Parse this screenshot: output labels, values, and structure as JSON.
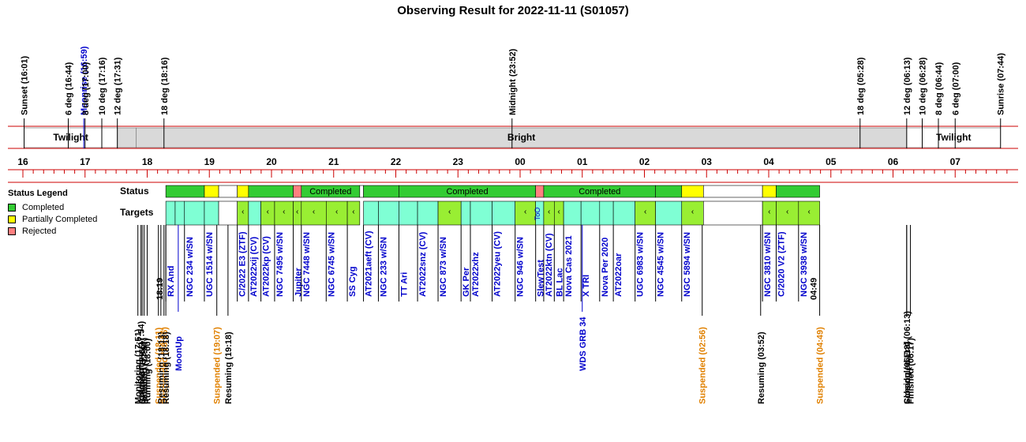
{
  "title": "Observing Result for 2022-11-11 (S01057)",
  "colors": {
    "completed": "#33cc33",
    "partial": "#ffff00",
    "rejected": "#ff8080",
    "target_done": "#7fffd4",
    "target_partial": "#99ee33",
    "twilight": "#ffffff",
    "bright": "#d9d9d9",
    "axis": "#cc0000",
    "ref_blue": "#0000cc",
    "suspended": "#e08000"
  },
  "legend": {
    "title": "Status Legend",
    "items": [
      {
        "label": "Completed",
        "color": "#33cc33"
      },
      {
        "label": "Partially Completed",
        "color": "#ffff00"
      },
      {
        "label": "Rejected",
        "color": "#ff8080"
      }
    ]
  },
  "row_labels": {
    "status": "Status",
    "targets": "Targets"
  },
  "sky_events": [
    {
      "t": 16.02,
      "label": "Sunset (16:01)"
    },
    {
      "t": 16.73,
      "label": "6 deg (16:44)"
    },
    {
      "t": 16.98,
      "label": "Moonrise (16:59)",
      "color": "ref_blue"
    },
    {
      "t": 17.0,
      "label": "8 deg (17:00)"
    },
    {
      "t": 17.27,
      "label": "10 deg (17:16)"
    },
    {
      "t": 17.52,
      "label": "12 deg (17:31)"
    },
    {
      "t": 18.27,
      "label": "18 deg (18:16)"
    },
    {
      "t": 23.87,
      "label": "Midnight (23:52)"
    },
    {
      "t": 29.47,
      "label": "18 deg (05:28)"
    },
    {
      "t": 30.22,
      "label": "12 deg (06:13)"
    },
    {
      "t": 30.47,
      "label": "10 deg (06:28)"
    },
    {
      "t": 30.73,
      "label": "8 deg (06:44)"
    },
    {
      "t": 31.0,
      "label": "6 deg (07:00)"
    },
    {
      "t": 31.73,
      "label": "Sunrise (07:44)"
    }
  ],
  "sky_bands": [
    {
      "t0": 16.02,
      "t1": 17.52,
      "label": "Twilight",
      "color": "twilight"
    },
    {
      "t0": 17.52,
      "t1": 17.82,
      "label": "",
      "color": "bright"
    },
    {
      "t0": 17.82,
      "t1": 30.22,
      "label": "Bright",
      "color": "bright"
    },
    {
      "t0": 30.22,
      "t1": 31.73,
      "label": "Twilight",
      "color": "twilight"
    }
  ],
  "hour_labels": [
    "16",
    "17",
    "18",
    "19",
    "20",
    "21",
    "22",
    "23",
    "00",
    "01",
    "02",
    "03",
    "04",
    "05",
    "06",
    "07"
  ],
  "status_blocks": [
    {
      "t0": 18.3,
      "t1": 18.92,
      "kind": "completed",
      "label": ""
    },
    {
      "t0": 18.92,
      "t1": 19.15,
      "kind": "partial",
      "label": ""
    },
    {
      "t0": 19.15,
      "t1": 19.45,
      "kind": "blank",
      "label": ""
    },
    {
      "t0": 19.45,
      "t1": 19.63,
      "kind": "partial",
      "label": ""
    },
    {
      "t0": 19.63,
      "t1": 20.35,
      "kind": "completed",
      "label": ""
    },
    {
      "t0": 20.35,
      "t1": 20.48,
      "kind": "rejected",
      "label": ""
    },
    {
      "t0": 20.48,
      "t1": 21.42,
      "kind": "completed",
      "label": "Completed"
    },
    {
      "t0": 21.42,
      "t1": 21.48,
      "kind": "blank",
      "label": ""
    },
    {
      "t0": 21.48,
      "t1": 22.05,
      "kind": "completed",
      "label": ""
    },
    {
      "t0": 22.05,
      "t1": 24.25,
      "kind": "completed",
      "label": "Completed"
    },
    {
      "t0": 24.25,
      "t1": 24.38,
      "kind": "rejected",
      "label": ""
    },
    {
      "t0": 24.38,
      "t1": 26.18,
      "kind": "completed",
      "label": "Completed"
    },
    {
      "t0": 26.18,
      "t1": 26.6,
      "kind": "completed",
      "label": ""
    },
    {
      "t0": 26.6,
      "t1": 26.95,
      "kind": "partial",
      "label": ""
    },
    {
      "t0": 26.95,
      "t1": 27.9,
      "kind": "blank",
      "label": ""
    },
    {
      "t0": 27.9,
      "t1": 28.12,
      "kind": "partial",
      "label": ""
    },
    {
      "t0": 28.12,
      "t1": 28.82,
      "kind": "completed",
      "label": ""
    }
  ],
  "targets": [
    {
      "t0": 18.3,
      "t1": 18.45,
      "kind": "target_done",
      "name": "RX And",
      "mark": ""
    },
    {
      "t0": 18.45,
      "t1": 18.6,
      "kind": "target_done",
      "name": "",
      "mark": ""
    },
    {
      "t0": 18.6,
      "t1": 18.92,
      "kind": "target_done",
      "name": "NGC 234 w/SN",
      "mark": ""
    },
    {
      "t0": 18.92,
      "t1": 19.15,
      "kind": "target_done",
      "name": "UGC 1514 w/SN",
      "mark": ""
    },
    {
      "t0": 19.15,
      "t1": 19.45,
      "kind": "blank",
      "name": "",
      "mark": ""
    },
    {
      "t0": 19.45,
      "t1": 19.63,
      "kind": "target_partial",
      "name": "C/2022 E3 (ZTF)",
      "mark": "‹"
    },
    {
      "t0": 19.63,
      "t1": 19.83,
      "kind": "target_done",
      "name": "AT2022xij (CV)",
      "mark": ""
    },
    {
      "t0": 19.83,
      "t1": 20.05,
      "kind": "target_partial",
      "name": "AT2022kp (CV)",
      "mark": "‹"
    },
    {
      "t0": 20.05,
      "t1": 20.35,
      "kind": "target_partial",
      "name": "NGC 7495 w/SN",
      "mark": "‹"
    },
    {
      "t0": 20.35,
      "t1": 20.48,
      "kind": "target_partial",
      "name": "Jupiter",
      "mark": "‹"
    },
    {
      "t0": 20.48,
      "t1": 20.88,
      "kind": "target_partial",
      "name": "NGC 7448 w/SN",
      "mark": "‹"
    },
    {
      "t0": 20.88,
      "t1": 21.22,
      "kind": "target_partial",
      "name": "NGC 6745 w/SN",
      "mark": "‹"
    },
    {
      "t0": 21.22,
      "t1": 21.42,
      "kind": "target_partial",
      "name": "SS Cyg",
      "mark": "‹"
    },
    {
      "t0": 21.48,
      "t1": 21.72,
      "kind": "target_done",
      "name": "AT2021aeft (CV)",
      "mark": ""
    },
    {
      "t0": 21.72,
      "t1": 22.05,
      "kind": "target_done",
      "name": "NGC 233 w/SN",
      "mark": ""
    },
    {
      "t0": 22.05,
      "t1": 22.35,
      "kind": "target_done",
      "name": "TT Ari",
      "mark": ""
    },
    {
      "t0": 22.35,
      "t1": 22.68,
      "kind": "target_done",
      "name": "AT2022snz (CV)",
      "mark": ""
    },
    {
      "t0": 22.68,
      "t1": 23.05,
      "kind": "target_partial",
      "name": "NGC 873 w/SN",
      "mark": "‹"
    },
    {
      "t0": 23.05,
      "t1": 23.2,
      "kind": "target_done",
      "name": "GK Per",
      "mark": ""
    },
    {
      "t0": 23.2,
      "t1": 23.55,
      "kind": "target_done",
      "name": "AT2022xhz",
      "mark": ""
    },
    {
      "t0": 23.55,
      "t1": 23.92,
      "kind": "target_done",
      "name": "AT2022yeu (CV)",
      "mark": ""
    },
    {
      "t0": 23.92,
      "t1": 24.25,
      "kind": "target_partial",
      "name": "NGC 946 w/SN",
      "mark": "‹"
    },
    {
      "t0": 24.25,
      "t1": 24.38,
      "kind": "target_done",
      "name": "SlewTest",
      "mark": "ToO"
    },
    {
      "t0": 24.38,
      "t1": 24.55,
      "kind": "target_partial",
      "name": "AT2022ktn (CV)",
      "mark": "‹"
    },
    {
      "t0": 24.55,
      "t1": 24.7,
      "kind": "target_partial",
      "name": "BL Lac",
      "mark": "‹"
    },
    {
      "t0": 24.7,
      "t1": 24.98,
      "kind": "target_done",
      "name": "Nova Cas 2021",
      "mark": ""
    },
    {
      "t0": 24.98,
      "t1": 25.28,
      "kind": "target_done",
      "name": "X TRI",
      "mark": ""
    },
    {
      "t0": 25.28,
      "t1": 25.5,
      "kind": "target_done",
      "name": "Nova Per 2020",
      "mark": ""
    },
    {
      "t0": 25.5,
      "t1": 25.85,
      "kind": "target_done",
      "name": "AT2022oar",
      "mark": ""
    },
    {
      "t0": 25.85,
      "t1": 26.18,
      "kind": "target_partial",
      "name": "UGC 6983 w/SN",
      "mark": "‹"
    },
    {
      "t0": 26.18,
      "t1": 26.6,
      "kind": "target_done",
      "name": "NGC 4545 w/SN",
      "mark": ""
    },
    {
      "t0": 26.6,
      "t1": 26.95,
      "kind": "target_partial",
      "name": "NGC 5894 w/SN",
      "mark": "‹"
    },
    {
      "t0": 26.95,
      "t1": 27.9,
      "kind": "blank",
      "name": "",
      "mark": ""
    },
    {
      "t0": 27.9,
      "t1": 28.12,
      "kind": "target_partial",
      "name": "NGC 3810 w/SN",
      "mark": "‹"
    },
    {
      "t0": 28.12,
      "t1": 28.48,
      "kind": "target_partial",
      "name": "C/2020 V2 (ZTF)",
      "mark": "‹"
    },
    {
      "t0": 28.48,
      "t1": 28.82,
      "kind": "target_partial",
      "name": "NGC 3938 w/SN",
      "mark": "‹"
    }
  ],
  "window_labels": [
    {
      "t": 18.3,
      "label": "18:19"
    },
    {
      "t": 28.82,
      "label": "04:49"
    }
  ],
  "extra_refs": [
    {
      "t": 18.5,
      "label": "MoonUp",
      "color": "ref_blue"
    },
    {
      "t": 25.0,
      "label": "WDS GRB 34",
      "color": "ref_blue"
    }
  ],
  "system_events": [
    {
      "t": 17.85,
      "label": "Monitoring (17:51)",
      "kind": "normal"
    },
    {
      "t": 17.9,
      "label": "AutoStarting (17:54)",
      "kind": "normal"
    },
    {
      "t": 17.92,
      "label": "Created (17:55)",
      "kind": "normal"
    },
    {
      "t": 17.95,
      "label": "Initiating (17:57)",
      "kind": "normal"
    },
    {
      "t": 18.0,
      "label": "Running (18:00)",
      "kind": "normal"
    },
    {
      "t": 18.18,
      "label": "Suspended (18:11)",
      "kind": "suspended"
    },
    {
      "t": 18.22,
      "label": "Resuming (18:13)",
      "kind": "normal"
    },
    {
      "t": 18.27,
      "label": "Suspended (18:16)",
      "kind": "suspended"
    },
    {
      "t": 18.3,
      "label": "Resuming (18:18)",
      "kind": "normal"
    },
    {
      "t": 19.12,
      "label": "Suspended (19:07)",
      "kind": "suspended"
    },
    {
      "t": 19.3,
      "label": "Resuming (19:18)",
      "kind": "normal"
    },
    {
      "t": 26.93,
      "label": "Suspended (02:56)",
      "kind": "suspended"
    },
    {
      "t": 27.87,
      "label": "Resuming (03:52)",
      "kind": "normal"
    },
    {
      "t": 28.82,
      "label": "Suspended (04:49)",
      "kind": "suspended"
    },
    {
      "t": 30.22,
      "label": "Closing (06:13)",
      "kind": "normal"
    },
    {
      "t": 30.22,
      "label": "Scheduled End (06:13)",
      "kind": "normal"
    },
    {
      "t": 30.28,
      "label": "Finished (06:17)",
      "kind": "normal"
    }
  ]
}
